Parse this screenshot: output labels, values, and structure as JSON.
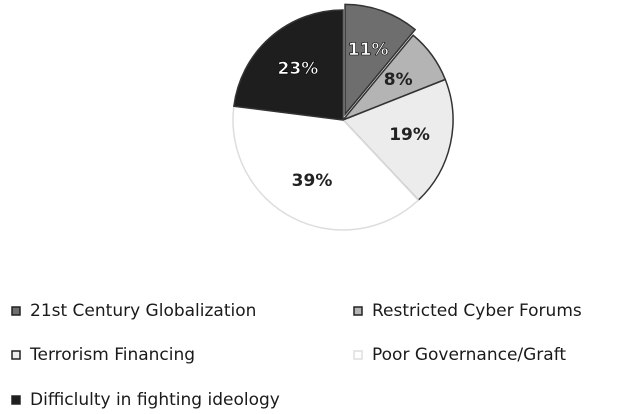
{
  "chart_data": {
    "type": "pie",
    "categories": [
      "21st Century Globalization",
      "Restricted Cyber Forums",
      "Terrorism Financing",
      "Poor Governance/Graft",
      "Difficlulty in fighting ideology"
    ],
    "values": [
      11,
      8,
      19,
      39,
      23
    ],
    "value_labels": [
      "11%",
      "8%",
      "19%",
      "39%",
      "23%"
    ],
    "colors": [
      "#6e6e6e",
      "#b4b4b4",
      "#ececec",
      "#ffffff",
      "#1e1e1e"
    ]
  }
}
